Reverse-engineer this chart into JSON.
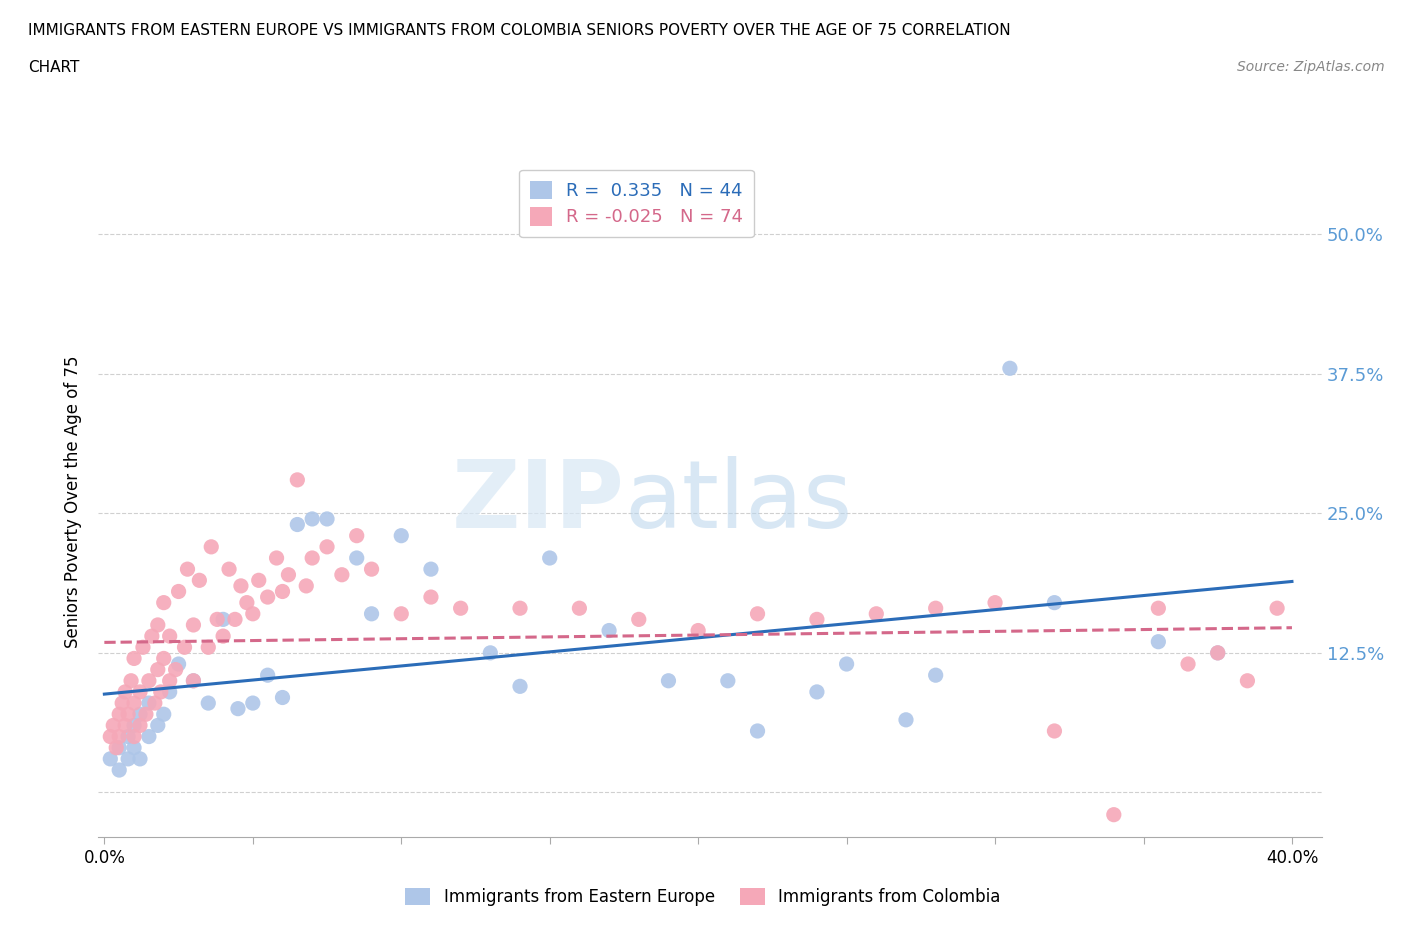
{
  "title_line1": "IMMIGRANTS FROM EASTERN EUROPE VS IMMIGRANTS FROM COLOMBIA SENIORS POVERTY OVER THE AGE OF 75 CORRELATION",
  "title_line2": "CHART",
  "source": "Source: ZipAtlas.com",
  "ylabel": "Seniors Poverty Over the Age of 75",
  "xlim": [
    -0.002,
    0.41
  ],
  "ylim": [
    -0.04,
    0.56
  ],
  "yticks": [
    0.0,
    0.125,
    0.25,
    0.375,
    0.5
  ],
  "ytick_labels": [
    "",
    "12.5%",
    "25.0%",
    "37.5%",
    "50.0%"
  ],
  "xticks": [
    0.0,
    0.05,
    0.1,
    0.15,
    0.2,
    0.25,
    0.3,
    0.35,
    0.4
  ],
  "xtick_edge_labels": [
    "0.0%",
    "40.0%"
  ],
  "grid_color": "#d0d0d0",
  "background_color": "#ffffff",
  "watermark_zip": "ZIP",
  "watermark_atlas": "atlas",
  "tick_label_color": "#5b9bd5",
  "series": [
    {
      "name": "Immigrants from Eastern Europe",
      "R": 0.335,
      "N": 44,
      "color": "#aec6e8",
      "trend_color": "#2b6cb8",
      "trend_style": "-",
      "x": [
        0.002,
        0.005,
        0.005,
        0.008,
        0.008,
        0.01,
        0.01,
        0.012,
        0.012,
        0.015,
        0.015,
        0.018,
        0.02,
        0.022,
        0.025,
        0.03,
        0.035,
        0.04,
        0.045,
        0.05,
        0.055,
        0.06,
        0.065,
        0.07,
        0.075,
        0.085,
        0.09,
        0.1,
        0.11,
        0.13,
        0.14,
        0.15,
        0.17,
        0.19,
        0.21,
        0.22,
        0.24,
        0.25,
        0.27,
        0.28,
        0.305,
        0.32,
        0.355,
        0.375
      ],
      "y": [
        0.03,
        0.02,
        0.04,
        0.03,
        0.05,
        0.04,
        0.06,
        0.03,
        0.07,
        0.05,
        0.08,
        0.06,
        0.07,
        0.09,
        0.115,
        0.1,
        0.08,
        0.155,
        0.075,
        0.08,
        0.105,
        0.085,
        0.24,
        0.245,
        0.245,
        0.21,
        0.16,
        0.23,
        0.2,
        0.125,
        0.095,
        0.21,
        0.145,
        0.1,
        0.1,
        0.055,
        0.09,
        0.115,
        0.065,
        0.105,
        0.38,
        0.17,
        0.135,
        0.125
      ]
    },
    {
      "name": "Immigrants from Colombia",
      "R": -0.025,
      "N": 74,
      "color": "#f5a8b8",
      "trend_color": "#d4688a",
      "trend_style": "--",
      "x": [
        0.002,
        0.003,
        0.004,
        0.005,
        0.005,
        0.006,
        0.007,
        0.007,
        0.008,
        0.009,
        0.01,
        0.01,
        0.01,
        0.012,
        0.012,
        0.013,
        0.014,
        0.015,
        0.016,
        0.017,
        0.018,
        0.018,
        0.019,
        0.02,
        0.02,
        0.022,
        0.022,
        0.024,
        0.025,
        0.027,
        0.028,
        0.03,
        0.03,
        0.032,
        0.035,
        0.036,
        0.038,
        0.04,
        0.042,
        0.044,
        0.046,
        0.048,
        0.05,
        0.052,
        0.055,
        0.058,
        0.06,
        0.062,
        0.065,
        0.068,
        0.07,
        0.075,
        0.08,
        0.085,
        0.09,
        0.1,
        0.11,
        0.12,
        0.14,
        0.16,
        0.18,
        0.2,
        0.22,
        0.24,
        0.26,
        0.28,
        0.3,
        0.32,
        0.34,
        0.355,
        0.365,
        0.375,
        0.385,
        0.395
      ],
      "y": [
        0.05,
        0.06,
        0.04,
        0.07,
        0.05,
        0.08,
        0.06,
        0.09,
        0.07,
        0.1,
        0.05,
        0.08,
        0.12,
        0.06,
        0.09,
        0.13,
        0.07,
        0.1,
        0.14,
        0.08,
        0.11,
        0.15,
        0.09,
        0.12,
        0.17,
        0.1,
        0.14,
        0.11,
        0.18,
        0.13,
        0.2,
        0.1,
        0.15,
        0.19,
        0.13,
        0.22,
        0.155,
        0.14,
        0.2,
        0.155,
        0.185,
        0.17,
        0.16,
        0.19,
        0.175,
        0.21,
        0.18,
        0.195,
        0.28,
        0.185,
        0.21,
        0.22,
        0.195,
        0.23,
        0.2,
        0.16,
        0.175,
        0.165,
        0.165,
        0.165,
        0.155,
        0.145,
        0.16,
        0.155,
        0.16,
        0.165,
        0.17,
        0.055,
        -0.02,
        0.165,
        0.115,
        0.125,
        0.1,
        0.165
      ]
    }
  ]
}
